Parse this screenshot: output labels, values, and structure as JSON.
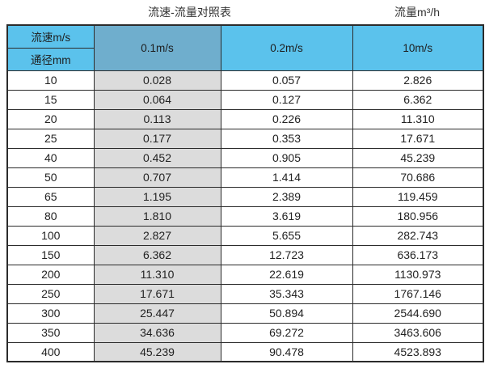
{
  "page": {
    "title": "流速-流量对照表",
    "unit_label": "流量m³/h"
  },
  "table": {
    "corner": {
      "velocity_label": "流速m/s",
      "diameter_label": "通径mm"
    },
    "columns": [
      "0.1m/s",
      "0.2m/s",
      "10m/s"
    ],
    "rows": [
      {
        "diameter": "10",
        "values": [
          "0.028",
          "0.057",
          "2.826"
        ]
      },
      {
        "diameter": "15",
        "values": [
          "0.064",
          "0.127",
          "6.362"
        ]
      },
      {
        "diameter": "20",
        "values": [
          "0.113",
          "0.226",
          "11.310"
        ]
      },
      {
        "diameter": "25",
        "values": [
          "0.177",
          "0.353",
          "17.671"
        ]
      },
      {
        "diameter": "40",
        "values": [
          "0.452",
          "0.905",
          "45.239"
        ]
      },
      {
        "diameter": "50",
        "values": [
          "0.707",
          "1.414",
          "70.686"
        ]
      },
      {
        "diameter": "65",
        "values": [
          "1.195",
          "2.389",
          "119.459"
        ]
      },
      {
        "diameter": "80",
        "values": [
          "1.810",
          "3.619",
          "180.956"
        ]
      },
      {
        "diameter": "100",
        "values": [
          "2.827",
          "5.655",
          "282.743"
        ]
      },
      {
        "diameter": "150",
        "values": [
          "6.362",
          "12.723",
          "636.173"
        ]
      },
      {
        "diameter": "200",
        "values": [
          "11.310",
          "22.619",
          "1130.973"
        ]
      },
      {
        "diameter": "250",
        "values": [
          "17.671",
          "35.343",
          "1767.146"
        ]
      },
      {
        "diameter": "300",
        "values": [
          "25.447",
          "50.894",
          "2544.690"
        ]
      },
      {
        "diameter": "350",
        "values": [
          "34.636",
          "69.272",
          "3463.606"
        ]
      },
      {
        "diameter": "400",
        "values": [
          "45.239",
          "90.478",
          "4523.893"
        ]
      }
    ]
  },
  "colors": {
    "header-blue": "#5BC2EC",
    "header-blue-dark": "#6FAECD",
    "column-gray": "#DCDCDC",
    "border": "#2B2B2B",
    "text": "#262626"
  }
}
